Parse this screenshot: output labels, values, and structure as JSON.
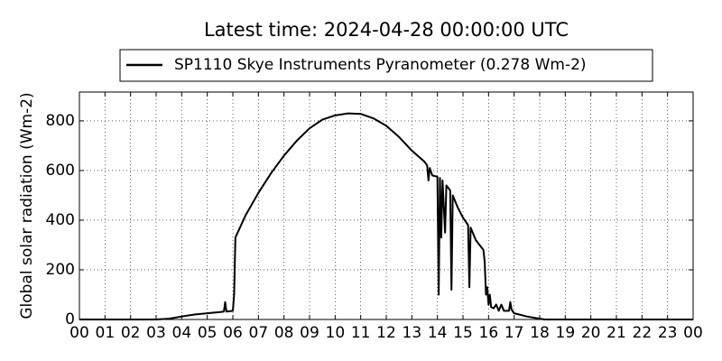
{
  "chart_data": {
    "type": "line",
    "title": "Latest time: 2024-04-28 00:00:00 UTC",
    "y_label": "Global solar radiation (Wm-2)",
    "x": [
      0,
      3,
      3.5,
      4,
      4.5,
      5,
      5.5,
      5.65,
      5.7,
      5.75,
      6,
      6.05,
      6.1,
      6.5,
      7,
      7.5,
      8,
      8.5,
      9,
      9.5,
      10,
      10.5,
      11,
      11.5,
      12,
      12.5,
      13,
      13.5,
      13.6,
      13.65,
      13.7,
      13.8,
      14,
      14.05,
      14.1,
      14.15,
      14.2,
      14.3,
      14.35,
      14.5,
      14.55,
      14.6,
      14.8,
      15,
      15.2,
      15.25,
      15.3,
      15.5,
      15.8,
      15.85,
      15.9,
      15.95,
      16,
      16.05,
      16.1,
      16.2,
      16.3,
      16.4,
      16.5,
      16.6,
      16.8,
      16.85,
      16.9,
      17,
      17.2,
      17.5,
      18,
      18.2,
      24
    ],
    "series": [
      {
        "name": "SP1110 Skye Instruments Pyranometer (0.278 Wm-2)",
        "color": "#000000",
        "values": [
          0,
          0,
          3,
          12,
          20,
          25,
          30,
          32,
          70,
          32,
          35,
          100,
          330,
          420,
          510,
          590,
          660,
          720,
          770,
          805,
          822,
          830,
          828,
          810,
          780,
          735,
          680,
          635,
          620,
          560,
          610,
          580,
          575,
          100,
          570,
          330,
          560,
          350,
          540,
          520,
          120,
          500,
          450,
          410,
          380,
          130,
          370,
          320,
          280,
          230,
          100,
          130,
          60,
          100,
          50,
          45,
          60,
          35,
          60,
          35,
          35,
          70,
          40,
          25,
          20,
          12,
          3,
          0,
          0
        ]
      }
    ],
    "xlim": [
      0,
      24
    ],
    "xticks": [
      {
        "value": 0,
        "label": "00"
      },
      {
        "value": 1,
        "label": "01"
      },
      {
        "value": 2,
        "label": "02"
      },
      {
        "value": 3,
        "label": "03"
      },
      {
        "value": 4,
        "label": "04"
      },
      {
        "value": 5,
        "label": "05"
      },
      {
        "value": 6,
        "label": "06"
      },
      {
        "value": 7,
        "label": "07"
      },
      {
        "value": 8,
        "label": "08"
      },
      {
        "value": 9,
        "label": "09"
      },
      {
        "value": 10,
        "label": "10"
      },
      {
        "value": 11,
        "label": "11"
      },
      {
        "value": 12,
        "label": "12"
      },
      {
        "value": 13,
        "label": "13"
      },
      {
        "value": 14,
        "label": "14"
      },
      {
        "value": 15,
        "label": "15"
      },
      {
        "value": 16,
        "label": "16"
      },
      {
        "value": 17,
        "label": "17"
      },
      {
        "value": 18,
        "label": "18"
      },
      {
        "value": 19,
        "label": "19"
      },
      {
        "value": 20,
        "label": "20"
      },
      {
        "value": 21,
        "label": "21"
      },
      {
        "value": 22,
        "label": "22"
      },
      {
        "value": 23,
        "label": "23"
      },
      {
        "value": 24,
        "label": "00"
      }
    ],
    "ylim": [
      0,
      916
    ],
    "yticks": [
      0,
      200,
      400,
      600,
      800
    ],
    "grid": true,
    "legend": "top"
  }
}
